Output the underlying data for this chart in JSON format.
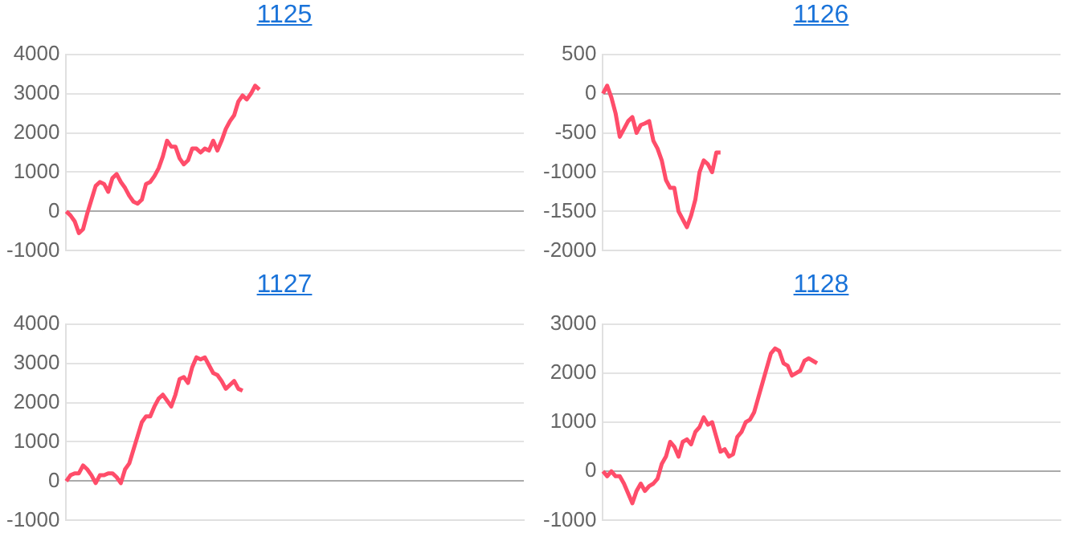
{
  "chart_data": [
    {
      "type": "line",
      "title": "1125",
      "categories": [
        null,
        null,
        null,
        null,
        null,
        null,
        null,
        null,
        null,
        null,
        null,
        null,
        null,
        null,
        null,
        null,
        null,
        null,
        null,
        null,
        null,
        null,
        null,
        null,
        null,
        null,
        null,
        null,
        null,
        null,
        null,
        null,
        null,
        null,
        null,
        null,
        null,
        null,
        null,
        null,
        null,
        null,
        null,
        null,
        null,
        null,
        null,
        null,
        null,
        null,
        null,
        null,
        null,
        null,
        null,
        null,
        null,
        null,
        null,
        null,
        null,
        null,
        null,
        null,
        null,
        null,
        null,
        null,
        null,
        null,
        null,
        null,
        null,
        null,
        null,
        null,
        null,
        null,
        null,
        null,
        null,
        null,
        null,
        null,
        null,
        null,
        null,
        null,
        null,
        null,
        null,
        null,
        null,
        null,
        null,
        null,
        null,
        null,
        null,
        null,
        null,
        null,
        null,
        null,
        null,
        null,
        null,
        null,
        null,
        null
      ],
      "series": [
        {
          "color": "#ff4d6a",
          "values": [
            0,
            -100,
            -250,
            -550,
            -450,
            -50,
            300,
            650,
            750,
            700,
            500,
            850,
            950,
            750,
            600,
            400,
            250,
            200,
            300,
            700,
            750,
            900,
            1100,
            1400,
            1800,
            1650,
            1650,
            1350,
            1200,
            1300,
            1600,
            1600,
            1500,
            1600,
            1550,
            1800,
            1550,
            1800,
            2100,
            2300,
            2450,
            2800,
            2950,
            2850,
            3000,
            3200,
            3100,
            null,
            null,
            null,
            null,
            null,
            null,
            null,
            null,
            null,
            null,
            null,
            null,
            null,
            null,
            null,
            null,
            null,
            null,
            null,
            null,
            null,
            null,
            null,
            null,
            null,
            null,
            null,
            null,
            null,
            null,
            null,
            null,
            null,
            null,
            null,
            null,
            null,
            null,
            null,
            null,
            null,
            null,
            null,
            null,
            null,
            null,
            null,
            null,
            null,
            null,
            null,
            null,
            null,
            null,
            null,
            null,
            null,
            null,
            null,
            null,
            null,
            null,
            null
          ]
        }
      ],
      "ylim": [
        -1000,
        4000
      ],
      "yticks": [
        -1000,
        0,
        1000,
        2000,
        3000,
        4000
      ],
      "grid": "y",
      "legend": false,
      "tick_labels": "y",
      "marker": "none",
      "line_style": "solid"
    },
    {
      "type": "line",
      "title": "1126",
      "categories": [
        null,
        null,
        null,
        null,
        null,
        null,
        null,
        null,
        null,
        null,
        null,
        null,
        null,
        null,
        null,
        null,
        null,
        null,
        null,
        null,
        null,
        null,
        null,
        null,
        null,
        null,
        null,
        null,
        null,
        null,
        null,
        null,
        null,
        null,
        null,
        null,
        null,
        null,
        null,
        null,
        null,
        null,
        null,
        null,
        null,
        null,
        null,
        null,
        null,
        null,
        null,
        null,
        null,
        null,
        null,
        null,
        null,
        null,
        null,
        null,
        null,
        null,
        null,
        null,
        null,
        null,
        null,
        null,
        null,
        null,
        null,
        null,
        null,
        null,
        null,
        null,
        null,
        null,
        null,
        null,
        null,
        null,
        null,
        null,
        null,
        null,
        null,
        null,
        null,
        null,
        null,
        null,
        null,
        null,
        null,
        null,
        null,
        null,
        null,
        null,
        null,
        null,
        null,
        null,
        null,
        null,
        null,
        null,
        null,
        null
      ],
      "series": [
        {
          "color": "#ff4d6a",
          "values": [
            0,
            100,
            -50,
            -250,
            -550,
            -450,
            -350,
            -300,
            -500,
            -400,
            -380,
            -350,
            -600,
            -700,
            -850,
            -1100,
            -1200,
            -1200,
            -1500,
            -1600,
            -1700,
            -1550,
            -1350,
            -1000,
            -850,
            -900,
            -1000,
            -750,
            -750,
            null,
            null,
            null,
            null,
            null,
            null,
            null,
            null,
            null,
            null,
            null,
            null,
            null,
            null,
            null,
            null,
            null,
            null,
            null,
            null,
            null,
            null,
            null,
            null,
            null,
            null,
            null,
            null,
            null,
            null,
            null,
            null,
            null,
            null,
            null,
            null,
            null,
            null,
            null,
            null,
            null,
            null,
            null,
            null,
            null,
            null,
            null,
            null,
            null,
            null,
            null,
            null,
            null,
            null,
            null,
            null,
            null,
            null,
            null,
            null,
            null,
            null,
            null,
            null,
            null,
            null,
            null,
            null,
            null,
            null,
            null,
            null,
            null,
            null,
            null,
            null,
            null,
            null,
            null,
            null,
            null
          ]
        }
      ],
      "ylim": [
        -2000,
        500
      ],
      "yticks": [
        -2000,
        -1500,
        -1000,
        -500,
        0,
        500
      ],
      "grid": "y",
      "legend": false,
      "tick_labels": "y",
      "marker": "none",
      "line_style": "solid"
    },
    {
      "type": "line",
      "title": "1127",
      "categories": [
        null,
        null,
        null,
        null,
        null,
        null,
        null,
        null,
        null,
        null,
        null,
        null,
        null,
        null,
        null,
        null,
        null,
        null,
        null,
        null,
        null,
        null,
        null,
        null,
        null,
        null,
        null,
        null,
        null,
        null,
        null,
        null,
        null,
        null,
        null,
        null,
        null,
        null,
        null,
        null,
        null,
        null,
        null,
        null,
        null,
        null,
        null,
        null,
        null,
        null,
        null,
        null,
        null,
        null,
        null,
        null,
        null,
        null,
        null,
        null,
        null,
        null,
        null,
        null,
        null,
        null,
        null,
        null,
        null,
        null,
        null,
        null,
        null,
        null,
        null,
        null,
        null,
        null,
        null,
        null,
        null,
        null,
        null,
        null,
        null,
        null,
        null,
        null,
        null,
        null,
        null,
        null,
        null,
        null,
        null,
        null,
        null,
        null,
        null,
        null,
        null,
        null,
        null,
        null,
        null,
        null,
        null,
        null,
        null,
        null
      ],
      "series": [
        {
          "color": "#ff4d6a",
          "values": [
            0,
            150,
            200,
            200,
            400,
            300,
            150,
            -50,
            150,
            150,
            200,
            200,
            100,
            -50,
            300,
            450,
            800,
            1150,
            1500,
            1650,
            1650,
            1900,
            2100,
            2200,
            2050,
            1900,
            2200,
            2600,
            2650,
            2500,
            2900,
            3150,
            3100,
            3150,
            2950,
            2750,
            2700,
            2550,
            2350,
            2450,
            2550,
            2350,
            2300,
            null,
            null,
            null,
            null,
            null,
            null,
            null,
            null,
            null,
            null,
            null,
            null,
            null,
            null,
            null,
            null,
            null,
            null,
            null,
            null,
            null,
            null,
            null,
            null,
            null,
            null,
            null,
            null,
            null,
            null,
            null,
            null,
            null,
            null,
            null,
            null,
            null,
            null,
            null,
            null,
            null,
            null,
            null,
            null,
            null,
            null,
            null,
            null,
            null,
            null,
            null,
            null,
            null,
            null,
            null,
            null,
            null,
            null,
            null,
            null,
            null,
            null,
            null,
            null,
            null,
            null,
            null
          ]
        }
      ],
      "ylim": [
        -1000,
        4000
      ],
      "yticks": [
        -1000,
        0,
        1000,
        2000,
        3000,
        4000
      ],
      "grid": "y",
      "legend": false,
      "tick_labels": "y",
      "marker": "none",
      "line_style": "solid"
    },
    {
      "type": "line",
      "title": "1128",
      "categories": [
        null,
        null,
        null,
        null,
        null,
        null,
        null,
        null,
        null,
        null,
        null,
        null,
        null,
        null,
        null,
        null,
        null,
        null,
        null,
        null,
        null,
        null,
        null,
        null,
        null,
        null,
        null,
        null,
        null,
        null,
        null,
        null,
        null,
        null,
        null,
        null,
        null,
        null,
        null,
        null,
        null,
        null,
        null,
        null,
        null,
        null,
        null,
        null,
        null,
        null,
        null,
        null,
        null,
        null,
        null,
        null,
        null,
        null,
        null,
        null,
        null,
        null,
        null,
        null,
        null,
        null,
        null,
        null,
        null,
        null,
        null,
        null,
        null,
        null,
        null,
        null,
        null,
        null,
        null,
        null,
        null,
        null,
        null,
        null,
        null,
        null,
        null,
        null,
        null,
        null,
        null,
        null,
        null,
        null,
        null,
        null,
        null,
        null,
        null,
        null,
        null,
        null,
        null,
        null,
        null,
        null,
        null,
        null,
        null,
        null
      ],
      "series": [
        {
          "color": "#ff4d6a",
          "values": [
            0,
            -100,
            0,
            -100,
            -100,
            -250,
            -450,
            -650,
            -400,
            -250,
            -400,
            -300,
            -250,
            -150,
            150,
            300,
            600,
            500,
            300,
            600,
            650,
            550,
            800,
            900,
            1100,
            950,
            1000,
            700,
            400,
            450,
            300,
            350,
            700,
            800,
            1000,
            1050,
            1200,
            1500,
            1800,
            2100,
            2400,
            2500,
            2450,
            2200,
            2150,
            1950,
            2000,
            2050,
            2250,
            2300,
            2250,
            2200,
            null,
            null,
            null,
            null,
            null,
            null,
            null,
            null,
            null,
            null,
            null,
            null,
            null,
            null,
            null,
            null,
            null,
            null,
            null,
            null,
            null,
            null,
            null,
            null,
            null,
            null,
            null,
            null,
            null,
            null,
            null,
            null,
            null,
            null,
            null,
            null,
            null,
            null,
            null,
            null,
            null,
            null,
            null,
            null,
            null,
            null,
            null,
            null,
            null,
            null,
            null,
            null,
            null,
            null,
            null,
            null,
            null,
            null
          ]
        }
      ],
      "ylim": [
        -1000,
        3000
      ],
      "yticks": [
        -1000,
        0,
        1000,
        2000,
        3000
      ],
      "grid": "y",
      "legend": false,
      "tick_labels": "y",
      "marker": "none",
      "line_style": "solid"
    }
  ]
}
